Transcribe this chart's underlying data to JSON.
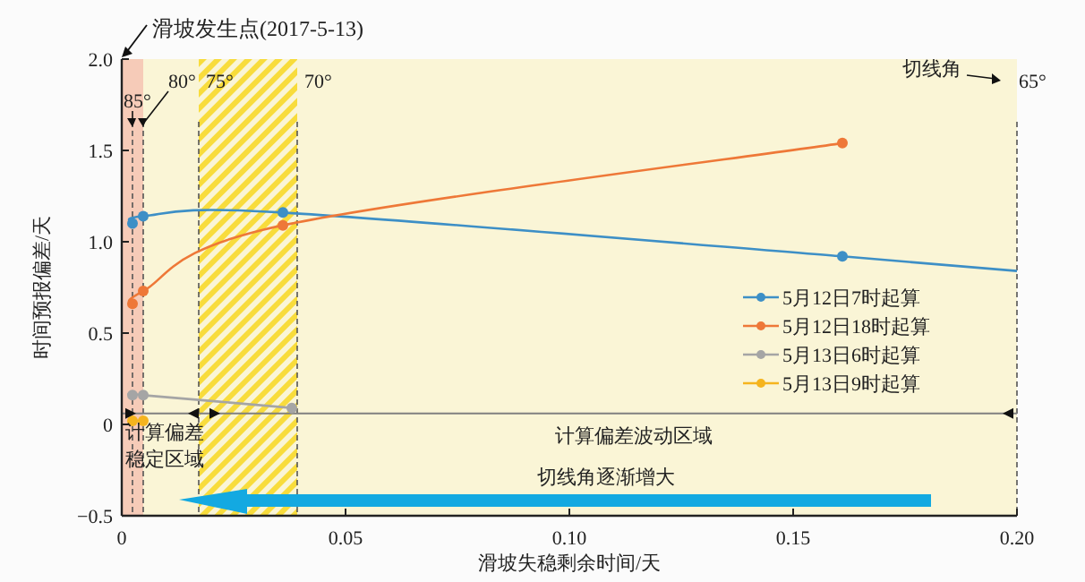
{
  "chart_data": {
    "type": "line",
    "xlabel": "滑坡失稳剩余时间/天",
    "ylabel": "时间预报偏差/天",
    "xlim": [
      0,
      0.2
    ],
    "ylim": [
      -0.5,
      2.0
    ],
    "xticks": [
      0,
      {
        "value": 0.05,
        "label": "0.05"
      },
      {
        "value": 0.1,
        "label": "0.10"
      },
      {
        "value": 0.15,
        "label": "0.15"
      },
      {
        "value": 0.2,
        "label": "0.20"
      }
    ],
    "yticks": [
      {
        "value": -0.5,
        "label": "−0.5"
      },
      0,
      0.5,
      {
        "value": 1,
        "label": "1.0"
      },
      1.5,
      {
        "value": 2,
        "label": "2.0"
      }
    ],
    "marker": "circle",
    "legend": "right",
    "grid": false,
    "series": [
      {
        "name": "5月12日7时起算",
        "color": "#3d8fc6",
        "x": [
          0.0024,
          0.0048,
          0.036,
          0.161
        ],
        "values": [
          1.1,
          1.14,
          1.16,
          0.92
        ]
      },
      {
        "name": "5月12日18时起算",
        "color": "#ee7838",
        "x": [
          0.0024,
          0.0048,
          0.036,
          0.161
        ],
        "values": [
          0.66,
          0.73,
          1.09,
          1.54
        ]
      },
      {
        "name": "5月13日6时起算",
        "color": "#a5a5a5",
        "x": [
          0.0024,
          0.0048,
          0.038
        ],
        "values": [
          0.16,
          0.16,
          0.09
        ]
      },
      {
        "name": "5月13日9时起算",
        "color": "#f5b41e",
        "x": [
          0.0024,
          0.0048
        ],
        "values": [
          0.02,
          0.02
        ]
      },
      {
        "type": "line",
        "color": "#3d8fc6",
        "marker": "none",
        "x": [
          0.161,
          0.2
        ],
        "values": [
          0.92,
          0.84
        ]
      }
    ],
    "ref_lines": [
      {
        "axis": "x",
        "value": 0.0024,
        "line_style": "dashed"
      },
      {
        "axis": "x",
        "value": 0.0048,
        "line_style": "dashed"
      },
      {
        "axis": "x",
        "value": 0.0172,
        "line_style": "dashed"
      },
      {
        "axis": "x",
        "value": 0.0392,
        "line_style": "dashed"
      },
      {
        "axis": "x",
        "value": 0.2,
        "line_style": "dashed"
      },
      {
        "axis": "y",
        "value": 0.06,
        "color": "#7f7f7f",
        "line_style": "solid"
      }
    ],
    "bands": [
      {
        "axis": "x",
        "from": 0,
        "to": 0.0048,
        "color": "#f6cbb8"
      },
      {
        "axis": "x",
        "from": 0.0172,
        "to": 0.0392,
        "color": "#f8dc3c"
      }
    ],
    "annotations": [
      "滑坡发生点(2017-5-13)",
      "切线角",
      "计算偏差",
      "稳定区域",
      "计算偏差波动区域",
      "切线角逐渐增大",
      "85°",
      "80°",
      "75°",
      "70°",
      "65°"
    ]
  }
}
